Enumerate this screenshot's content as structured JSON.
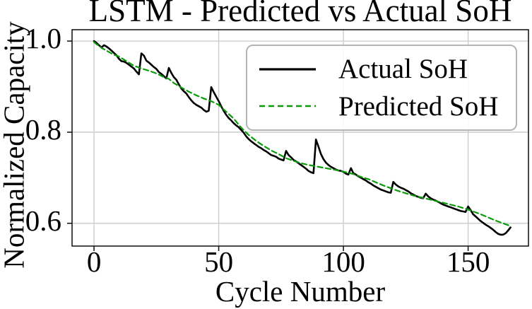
{
  "chart_data": {
    "type": "line",
    "title": "LSTM - Predicted vs Actual SoH",
    "xlabel": "Cycle Number",
    "ylabel": "Normalized Capacity",
    "xlim": [
      -8.8,
      174.2
    ],
    "ylim": [
      0.55,
      1.025
    ],
    "x_ticks": [
      {
        "value": 0,
        "label": "0"
      },
      {
        "value": 50,
        "label": "50"
      },
      {
        "value": 100,
        "label": "100"
      },
      {
        "value": 150,
        "label": "150"
      }
    ],
    "y_ticks": [
      {
        "value": 0.6,
        "label": "0.6"
      },
      {
        "value": 0.8,
        "label": "0.8"
      },
      {
        "value": 1.0,
        "label": "1.0"
      }
    ],
    "grid": true,
    "legend": {
      "position": "upper right"
    },
    "colors": {
      "actual": "#000000",
      "predicted": "#0a9a0a",
      "grid": "#c9c9c9",
      "axis": "#1a1a1a",
      "background": "#ffffff"
    },
    "series": [
      {
        "name": "Actual SoH",
        "line_style": "solid",
        "color": "#000000",
        "points": [
          [
            0,
            1.0
          ],
          [
            1,
            0.996
          ],
          [
            2,
            0.991
          ],
          [
            3,
            0.986
          ],
          [
            4,
            0.991
          ],
          [
            5,
            0.988
          ],
          [
            6,
            0.984
          ],
          [
            7,
            0.979
          ],
          [
            8,
            0.974
          ],
          [
            9,
            0.969
          ],
          [
            10,
            0.961
          ],
          [
            11,
            0.956
          ],
          [
            12,
            0.955
          ],
          [
            13,
            0.952
          ],
          [
            14,
            0.948
          ],
          [
            15,
            0.944
          ],
          [
            16,
            0.94
          ],
          [
            17,
            0.933
          ],
          [
            18,
            0.927
          ],
          [
            19,
            0.973
          ],
          [
            20,
            0.968
          ],
          [
            21,
            0.957
          ],
          [
            22,
            0.953
          ],
          [
            23,
            0.948
          ],
          [
            24,
            0.943
          ],
          [
            25,
            0.939
          ],
          [
            26,
            0.932
          ],
          [
            27,
            0.928
          ],
          [
            28,
            0.923
          ],
          [
            29,
            0.918
          ],
          [
            30,
            0.941
          ],
          [
            31,
            0.93
          ],
          [
            32,
            0.921
          ],
          [
            33,
            0.915
          ],
          [
            34,
            0.905
          ],
          [
            35,
            0.896
          ],
          [
            36,
            0.89
          ],
          [
            37,
            0.885
          ],
          [
            38,
            0.877
          ],
          [
            39,
            0.87
          ],
          [
            40,
            0.864
          ],
          [
            41,
            0.86
          ],
          [
            42,
            0.857
          ],
          [
            43,
            0.854
          ],
          [
            44,
            0.849
          ],
          [
            45,
            0.845
          ],
          [
            46,
            0.847
          ],
          [
            47,
            0.899
          ],
          [
            48,
            0.888
          ],
          [
            49,
            0.878
          ],
          [
            50,
            0.868
          ],
          [
            51,
            0.857
          ],
          [
            52,
            0.847
          ],
          [
            53,
            0.838
          ],
          [
            54,
            0.831
          ],
          [
            55,
            0.826
          ],
          [
            56,
            0.82
          ],
          [
            57,
            0.815
          ],
          [
            58,
            0.811
          ],
          [
            59,
            0.805
          ],
          [
            60,
            0.799
          ],
          [
            61,
            0.791
          ],
          [
            62,
            0.785
          ],
          [
            63,
            0.78
          ],
          [
            64,
            0.776
          ],
          [
            65,
            0.772
          ],
          [
            66,
            0.768
          ],
          [
            67,
            0.765
          ],
          [
            68,
            0.761
          ],
          [
            69,
            0.758
          ],
          [
            70,
            0.754
          ],
          [
            71,
            0.75
          ],
          [
            72,
            0.748
          ],
          [
            73,
            0.746
          ],
          [
            74,
            0.742
          ],
          [
            75,
            0.74
          ],
          [
            76,
            0.738
          ],
          [
            77,
            0.759
          ],
          [
            78,
            0.75
          ],
          [
            79,
            0.745
          ],
          [
            80,
            0.739
          ],
          [
            81,
            0.736
          ],
          [
            82,
            0.732
          ],
          [
            83,
            0.728
          ],
          [
            84,
            0.724
          ],
          [
            85,
            0.72
          ],
          [
            86,
            0.715
          ],
          [
            87,
            0.712
          ],
          [
            88,
            0.71
          ],
          [
            89,
            0.784
          ],
          [
            90,
            0.768
          ],
          [
            91,
            0.752
          ],
          [
            92,
            0.741
          ],
          [
            93,
            0.733
          ],
          [
            94,
            0.728
          ],
          [
            95,
            0.724
          ],
          [
            96,
            0.721
          ],
          [
            97,
            0.718
          ],
          [
            98,
            0.716
          ],
          [
            99,
            0.715
          ],
          [
            100,
            0.713
          ],
          [
            101,
            0.709
          ],
          [
            102,
            0.707
          ],
          [
            103,
            0.721
          ],
          [
            104,
            0.71
          ],
          [
            105,
            0.707
          ],
          [
            106,
            0.703
          ],
          [
            107,
            0.7
          ],
          [
            108,
            0.697
          ],
          [
            109,
            0.694
          ],
          [
            110,
            0.69
          ],
          [
            111,
            0.687
          ],
          [
            112,
            0.683
          ],
          [
            113,
            0.68
          ],
          [
            114,
            0.677
          ],
          [
            115,
            0.674
          ],
          [
            116,
            0.672
          ],
          [
            117,
            0.67
          ],
          [
            118,
            0.668
          ],
          [
            119,
            0.667
          ],
          [
            120,
            0.691
          ],
          [
            121,
            0.685
          ],
          [
            122,
            0.681
          ],
          [
            123,
            0.678
          ],
          [
            124,
            0.676
          ],
          [
            125,
            0.673
          ],
          [
            126,
            0.67
          ],
          [
            127,
            0.666
          ],
          [
            128,
            0.663
          ],
          [
            129,
            0.66
          ],
          [
            130,
            0.658
          ],
          [
            131,
            0.656
          ],
          [
            132,
            0.655
          ],
          [
            133,
            0.665
          ],
          [
            134,
            0.659
          ],
          [
            135,
            0.655
          ],
          [
            136,
            0.652
          ],
          [
            137,
            0.65
          ],
          [
            138,
            0.647
          ],
          [
            139,
            0.644
          ],
          [
            140,
            0.641
          ],
          [
            141,
            0.639
          ],
          [
            142,
            0.637
          ],
          [
            143,
            0.635
          ],
          [
            144,
            0.633
          ],
          [
            145,
            0.631
          ],
          [
            146,
            0.629
          ],
          [
            147,
            0.627
          ],
          [
            148,
            0.626
          ],
          [
            149,
            0.625
          ],
          [
            150,
            0.637
          ],
          [
            151,
            0.629
          ],
          [
            152,
            0.62
          ],
          [
            153,
            0.615
          ],
          [
            154,
            0.61
          ],
          [
            155,
            0.605
          ],
          [
            156,
            0.601
          ],
          [
            157,
            0.597
          ],
          [
            158,
            0.594
          ],
          [
            159,
            0.59
          ],
          [
            160,
            0.586
          ],
          [
            161,
            0.581
          ],
          [
            162,
            0.577
          ],
          [
            163,
            0.575
          ],
          [
            164,
            0.575
          ],
          [
            165,
            0.578
          ],
          [
            166,
            0.584
          ],
          [
            167,
            0.591
          ]
        ]
      },
      {
        "name": "Predicted SoH",
        "line_style": "dashed",
        "color": "#0a9a0a",
        "points": [
          [
            0,
            0.998
          ],
          [
            1,
            0.993
          ],
          [
            2,
            0.99
          ],
          [
            3,
            0.985
          ],
          [
            4,
            0.982
          ],
          [
            6,
            0.976
          ],
          [
            8,
            0.97
          ],
          [
            10,
            0.966
          ],
          [
            13,
            0.956
          ],
          [
            16,
            0.946
          ],
          [
            19,
            0.94
          ],
          [
            22,
            0.935
          ],
          [
            25,
            0.929
          ],
          [
            28,
            0.921
          ],
          [
            30,
            0.917
          ],
          [
            32,
            0.908
          ],
          [
            35,
            0.898
          ],
          [
            38,
            0.889
          ],
          [
            41,
            0.881
          ],
          [
            44,
            0.874
          ],
          [
            47,
            0.868
          ],
          [
            50,
            0.86
          ],
          [
            53,
            0.845
          ],
          [
            56,
            0.83
          ],
          [
            59,
            0.81
          ],
          [
            62,
            0.794
          ],
          [
            65,
            0.781
          ],
          [
            68,
            0.77
          ],
          [
            71,
            0.76
          ],
          [
            74,
            0.752
          ],
          [
            77,
            0.743
          ],
          [
            80,
            0.737
          ],
          [
            83,
            0.732
          ],
          [
            86,
            0.728
          ],
          [
            89,
            0.725
          ],
          [
            92,
            0.722
          ],
          [
            95,
            0.719
          ],
          [
            98,
            0.716
          ],
          [
            101,
            0.712
          ],
          [
            104,
            0.708
          ],
          [
            107,
            0.702
          ],
          [
            110,
            0.697
          ],
          [
            113,
            0.69
          ],
          [
            116,
            0.683
          ],
          [
            119,
            0.677
          ],
          [
            122,
            0.671
          ],
          [
            125,
            0.666
          ],
          [
            128,
            0.661
          ],
          [
            131,
            0.657
          ],
          [
            134,
            0.653
          ],
          [
            137,
            0.649
          ],
          [
            140,
            0.645
          ],
          [
            143,
            0.641
          ],
          [
            146,
            0.637
          ],
          [
            149,
            0.632
          ],
          [
            152,
            0.626
          ],
          [
            155,
            0.62
          ],
          [
            158,
            0.613
          ],
          [
            161,
            0.606
          ],
          [
            164,
            0.6
          ],
          [
            167,
            0.594
          ]
        ]
      }
    ]
  }
}
